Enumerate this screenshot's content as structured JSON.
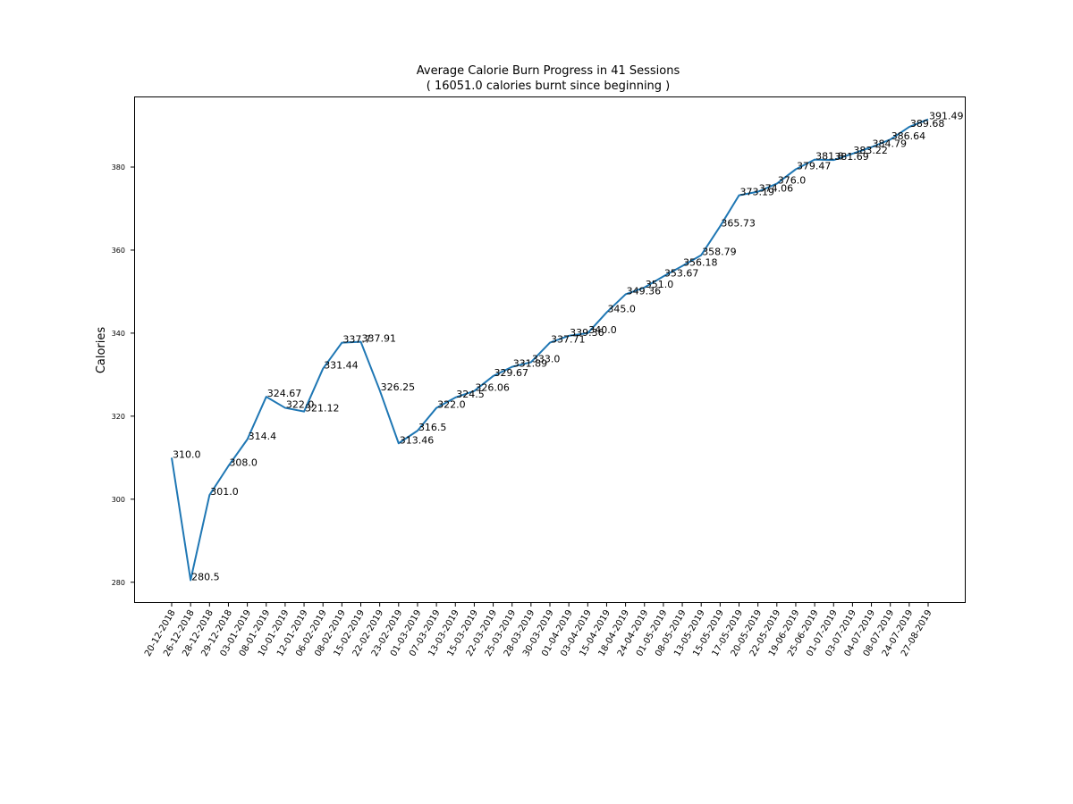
{
  "chart_data": {
    "type": "line",
    "title": "Average Calorie Burn Progress in 41 Sessions",
    "subtitle": "( 16051.0 calories burnt since beginning )",
    "xlabel": "",
    "ylabel": "Calories",
    "ylim": [
      275,
      397
    ],
    "yticks": [
      280,
      300,
      320,
      340,
      360,
      380
    ],
    "grid": false,
    "line_color": "#1f77b4",
    "x": [
      "20-12-2018",
      "26-12-2018",
      "28-12-2018",
      "29-12-2018",
      "03-01-2019",
      "08-01-2019",
      "10-01-2019",
      "12-01-2019",
      "06-02-2019",
      "08-02-2019",
      "15-02-2019",
      "22-02-2019",
      "23-02-2019",
      "01-03-2019",
      "07-03-2019",
      "13-03-2019",
      "15-03-2019",
      "22-03-2019",
      "25-03-2019",
      "28-03-2019",
      "30-03-2019",
      "01-04-2019",
      "03-04-2019",
      "15-04-2019",
      "18-04-2019",
      "24-04-2019",
      "01-05-2019",
      "08-05-2019",
      "13-05-2019",
      "15-05-2019",
      "17-05-2019",
      "20-05-2019",
      "22-05-2019",
      "19-06-2019",
      "25-06-2019",
      "01-07-2019",
      "03-07-2019",
      "04-07-2019",
      "08-07-2019",
      "24-07-2019",
      "27-08-2019"
    ],
    "values": [
      310.0,
      280.5,
      301.0,
      308.0,
      314.4,
      324.67,
      322.0,
      321.12,
      331.44,
      337.7,
      337.91,
      326.25,
      313.46,
      316.5,
      322.0,
      324.5,
      326.06,
      329.67,
      331.89,
      333.0,
      337.71,
      339.36,
      340.0,
      345.0,
      349.36,
      351.0,
      353.67,
      356.18,
      358.79,
      365.73,
      373.19,
      374.06,
      376.0,
      379.47,
      381.8,
      381.69,
      383.22,
      384.79,
      386.64,
      389.68,
      391.49
    ],
    "labels": [
      "310.0",
      "280.5",
      "301.0",
      "308.0",
      "314.4",
      "324.67",
      "322.0",
      "321.12",
      "331.44",
      "337.7",
      "337.91",
      "326.25",
      "313.46",
      "316.5",
      "322.0",
      "324.5",
      "326.06",
      "329.67",
      "331.89",
      "333.0",
      "337.71",
      "339.36",
      "340.0",
      "345.0",
      "349.36",
      "351.0",
      "353.67",
      "356.18",
      "358.79",
      "365.73",
      "373.19",
      "374.06",
      "376.0",
      "379.47",
      "381.8",
      "381.69",
      "383.22",
      "384.79",
      "386.64",
      "389.68",
      "391.49"
    ]
  }
}
